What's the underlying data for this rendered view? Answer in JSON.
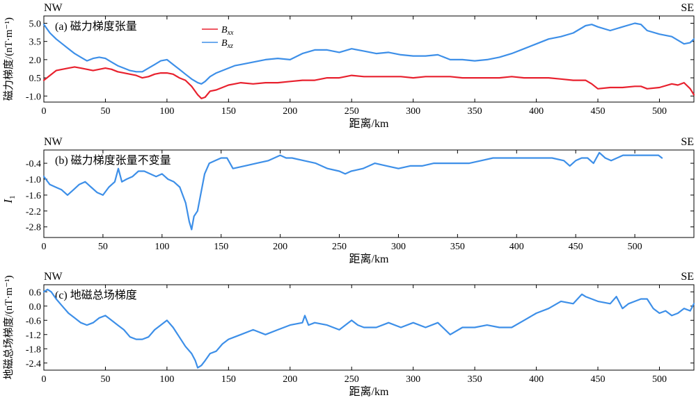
{
  "chart_data": [
    {
      "type": "line",
      "panel": "(a) 磁力梯度张量",
      "corner_left": "NW",
      "corner_right": "SE",
      "xlabel": "距离/km",
      "ylabel": "磁力梯度/(nT·m⁻¹)",
      "xlim": [
        0,
        528
      ],
      "ylim": [
        -1.5,
        5.6
      ],
      "xticks": [
        0,
        50,
        100,
        150,
        200,
        250,
        300,
        350,
        400,
        450,
        500
      ],
      "yticks": [
        -1.0,
        0.5,
        2.0,
        3.5,
        5.0
      ],
      "ytick_labels": [
        "-1.0",
        "0.5",
        "2.0",
        "3.5",
        "5.0"
      ],
      "legend_position": "top-left",
      "series": [
        {
          "name": "Bxx",
          "name_base": "B",
          "name_sub": "xx",
          "color": "#e8212e",
          "x": [
            0,
            5,
            10,
            15,
            20,
            25,
            30,
            35,
            40,
            45,
            50,
            55,
            60,
            65,
            70,
            75,
            80,
            85,
            90,
            95,
            100,
            105,
            110,
            115,
            120,
            125,
            128,
            131,
            135,
            140,
            145,
            150,
            155,
            160,
            170,
            180,
            190,
            200,
            210,
            220,
            230,
            240,
            250,
            260,
            270,
            280,
            290,
            300,
            310,
            320,
            330,
            340,
            350,
            360,
            370,
            380,
            390,
            400,
            410,
            420,
            430,
            440,
            445,
            450,
            460,
            470,
            480,
            485,
            490,
            500,
            510,
            515,
            520,
            525,
            528
          ],
          "y": [
            0.3,
            0.7,
            1.1,
            1.2,
            1.3,
            1.4,
            1.3,
            1.2,
            1.1,
            1.2,
            1.3,
            1.2,
            1.0,
            0.9,
            0.8,
            0.7,
            0.5,
            0.6,
            0.8,
            0.9,
            0.9,
            0.8,
            0.5,
            0.3,
            -0.2,
            -0.9,
            -1.2,
            -1.1,
            -0.6,
            -0.5,
            -0.3,
            -0.1,
            0.0,
            0.1,
            0.0,
            0.1,
            0.1,
            0.2,
            0.3,
            0.3,
            0.5,
            0.5,
            0.7,
            0.6,
            0.6,
            0.6,
            0.6,
            0.5,
            0.6,
            0.6,
            0.6,
            0.5,
            0.5,
            0.5,
            0.5,
            0.6,
            0.5,
            0.5,
            0.5,
            0.4,
            0.3,
            0.3,
            0.0,
            -0.4,
            -0.3,
            -0.3,
            -0.2,
            -0.2,
            -0.4,
            -0.3,
            0.0,
            -0.1,
            0.1,
            -0.4,
            -0.9
          ]
        },
        {
          "name": "Bxz",
          "name_base": "B",
          "name_sub": "xz",
          "color": "#3d8fe8",
          "x": [
            0,
            5,
            10,
            15,
            20,
            25,
            30,
            35,
            40,
            45,
            50,
            55,
            60,
            65,
            70,
            75,
            80,
            85,
            90,
            95,
            100,
            105,
            110,
            115,
            120,
            125,
            128,
            131,
            135,
            140,
            145,
            150,
            155,
            160,
            170,
            180,
            190,
            200,
            210,
            220,
            230,
            240,
            250,
            260,
            270,
            280,
            290,
            300,
            310,
            320,
            330,
            340,
            350,
            360,
            370,
            380,
            390,
            400,
            410,
            420,
            430,
            440,
            445,
            450,
            460,
            470,
            480,
            485,
            490,
            500,
            510,
            515,
            520,
            525,
            528
          ],
          "y": [
            4.9,
            4.2,
            3.7,
            3.3,
            2.9,
            2.5,
            2.2,
            1.9,
            2.1,
            2.2,
            2.1,
            1.8,
            1.5,
            1.3,
            1.1,
            1.0,
            1.0,
            1.3,
            1.6,
            1.9,
            2.0,
            1.6,
            1.2,
            0.8,
            0.4,
            0.1,
            0.0,
            0.2,
            0.6,
            0.9,
            1.1,
            1.3,
            1.5,
            1.6,
            1.8,
            2.0,
            2.1,
            2.0,
            2.5,
            2.8,
            2.8,
            2.6,
            2.9,
            2.7,
            2.5,
            2.6,
            2.4,
            2.3,
            2.3,
            2.4,
            2.0,
            2.0,
            1.9,
            2.0,
            2.2,
            2.5,
            2.9,
            3.3,
            3.7,
            3.9,
            4.2,
            4.8,
            4.9,
            4.7,
            4.4,
            4.7,
            5.0,
            4.9,
            4.4,
            4.1,
            3.9,
            3.6,
            3.3,
            3.4,
            3.7
          ]
        }
      ]
    },
    {
      "type": "line",
      "panel": "(b) 磁力梯度张量不变量",
      "corner_left": "NW",
      "corner_right": "SE",
      "xlabel": "距离/km",
      "ylabel": "I1",
      "ylabel_base": "I",
      "ylabel_sub": "1",
      "xlim": [
        0,
        550
      ],
      "ylim": [
        -3.2,
        0.1
      ],
      "xticks": [
        0,
        50,
        100,
        150,
        200,
        250,
        300,
        350,
        400,
        450,
        500
      ],
      "yticks": [
        -2.8,
        -2.2,
        -1.6,
        -1.0,
        -0.4
      ],
      "ytick_labels": [
        "-2.8",
        "-2.2",
        "-1.6",
        "-1.0",
        "-0.4"
      ],
      "series": [
        {
          "name": "",
          "color": "#3d8fe8",
          "x": [
            0,
            5,
            10,
            15,
            20,
            25,
            30,
            35,
            40,
            45,
            50,
            55,
            60,
            63,
            66,
            70,
            75,
            80,
            85,
            90,
            95,
            100,
            105,
            110,
            115,
            120,
            123,
            125,
            127,
            130,
            133,
            136,
            140,
            145,
            150,
            155,
            160,
            170,
            180,
            190,
            200,
            205,
            210,
            220,
            230,
            240,
            250,
            255,
            260,
            270,
            280,
            290,
            300,
            310,
            320,
            330,
            340,
            350,
            360,
            370,
            380,
            390,
            400,
            410,
            420,
            430,
            440,
            445,
            450,
            455,
            460,
            465,
            470,
            475,
            480,
            490,
            500,
            510,
            520,
            523
          ],
          "y": [
            -0.9,
            -1.2,
            -1.3,
            -1.4,
            -1.6,
            -1.4,
            -1.2,
            -1.1,
            -1.3,
            -1.5,
            -1.6,
            -1.3,
            -1.1,
            -0.6,
            -1.1,
            -1.0,
            -0.9,
            -0.7,
            -0.7,
            -0.8,
            -0.9,
            -0.8,
            -1.0,
            -1.1,
            -1.3,
            -1.9,
            -2.6,
            -2.9,
            -2.4,
            -2.2,
            -1.5,
            -0.8,
            -0.4,
            -0.3,
            -0.2,
            -0.2,
            -0.6,
            -0.5,
            -0.4,
            -0.3,
            -0.1,
            -0.2,
            -0.2,
            -0.3,
            -0.4,
            -0.6,
            -0.7,
            -0.8,
            -0.7,
            -0.6,
            -0.4,
            -0.5,
            -0.6,
            -0.5,
            -0.5,
            -0.4,
            -0.4,
            -0.4,
            -0.4,
            -0.3,
            -0.2,
            -0.2,
            -0.2,
            -0.2,
            -0.2,
            -0.2,
            -0.3,
            -0.5,
            -0.3,
            -0.2,
            -0.2,
            -0.4,
            0.0,
            -0.2,
            -0.3,
            -0.1,
            -0.1,
            -0.1,
            -0.1,
            -0.2
          ]
        }
      ]
    },
    {
      "type": "line",
      "panel": "(c) 地磁总场梯度",
      "corner_left": "NW",
      "corner_right": "SE",
      "xlabel": "距离/km",
      "ylabel": "地磁总场梯度/(nT·m⁻¹)",
      "xlim": [
        0,
        528
      ],
      "ylim": [
        -2.7,
        0.9
      ],
      "xticks": [
        0,
        50,
        100,
        150,
        200,
        250,
        300,
        350,
        400,
        450,
        500
      ],
      "yticks": [
        -2.4,
        -1.8,
        -1.2,
        -0.6,
        0.0,
        0.6
      ],
      "ytick_labels": [
        "-2.4",
        "-1.8",
        "-1.2",
        "-0.6",
        "0.0",
        "0.6"
      ],
      "series": [
        {
          "name": "",
          "color": "#3d8fe8",
          "x": [
            0,
            3,
            6,
            10,
            15,
            20,
            25,
            30,
            35,
            40,
            45,
            50,
            55,
            60,
            65,
            70,
            75,
            80,
            85,
            90,
            95,
            100,
            105,
            110,
            115,
            120,
            123,
            125,
            128,
            131,
            135,
            140,
            145,
            150,
            155,
            160,
            170,
            180,
            190,
            200,
            210,
            212,
            215,
            220,
            230,
            240,
            250,
            255,
            260,
            270,
            280,
            290,
            300,
            310,
            320,
            330,
            340,
            350,
            360,
            370,
            380,
            390,
            400,
            410,
            420,
            430,
            437,
            440,
            450,
            460,
            465,
            470,
            475,
            480,
            485,
            490,
            495,
            500,
            505,
            510,
            515,
            520,
            525,
            528
          ],
          "y": [
            0.6,
            0.7,
            0.6,
            0.3,
            0.0,
            -0.3,
            -0.5,
            -0.7,
            -0.8,
            -0.7,
            -0.5,
            -0.4,
            -0.6,
            -0.8,
            -1.0,
            -1.3,
            -1.4,
            -1.4,
            -1.3,
            -1.0,
            -0.8,
            -0.6,
            -0.9,
            -1.3,
            -1.7,
            -2.0,
            -2.3,
            -2.6,
            -2.5,
            -2.3,
            -2.0,
            -1.9,
            -1.6,
            -1.4,
            -1.3,
            -1.2,
            -1.0,
            -1.2,
            -1.0,
            -0.8,
            -0.7,
            -0.4,
            -0.8,
            -0.7,
            -0.8,
            -1.0,
            -0.6,
            -0.8,
            -0.9,
            -0.9,
            -0.7,
            -0.9,
            -0.7,
            -0.9,
            -0.7,
            -1.2,
            -0.9,
            -0.9,
            -0.8,
            -0.9,
            -0.9,
            -0.6,
            -0.3,
            -0.1,
            0.2,
            0.1,
            0.5,
            0.4,
            0.2,
            0.1,
            0.4,
            -0.1,
            0.1,
            0.2,
            0.3,
            0.3,
            -0.1,
            -0.3,
            -0.2,
            -0.4,
            -0.3,
            -0.1,
            -0.2,
            0.1
          ]
        }
      ]
    }
  ]
}
